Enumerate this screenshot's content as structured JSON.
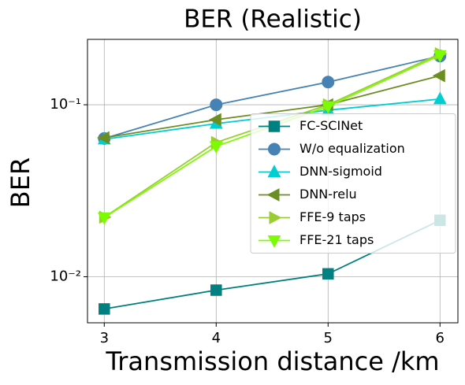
{
  "chart_data": {
    "type": "line",
    "title": "BER (Realistic)",
    "x_label": "Transmission distance /km",
    "y_label": "BER",
    "x": [
      3,
      4,
      5,
      6
    ],
    "xlim": [
      2.85,
      6.16
    ],
    "xticks": [
      3,
      4,
      5,
      6
    ],
    "ylim": [
      0.0054,
      0.24
    ],
    "y_scale": "log",
    "yticks": [
      {
        "value": 0.01,
        "label": "10⁻²"
      },
      {
        "value": 0.1,
        "label": "10⁻¹"
      }
    ],
    "grid": true,
    "legend": "center right",
    "series": [
      {
        "name": "FC-SCINet",
        "color": "#008080",
        "marker": "square",
        "values": [
          0.0065,
          0.00836,
          0.0104,
          0.0213
        ]
      },
      {
        "name": "W/o equalization",
        "color": "#4682b4",
        "marker": "circle",
        "values": [
          0.0637,
          0.1,
          0.1355,
          0.192
        ]
      },
      {
        "name": "DNN-sigmoid",
        "color": "#00ced1",
        "marker": "triangle-up",
        "values": [
          0.063,
          0.0777,
          0.093,
          0.108
        ]
      },
      {
        "name": "DNN-relu",
        "color": "#6b8e23",
        "marker": "triangle-left",
        "values": [
          0.0643,
          0.0819,
          0.1,
          0.1476
        ]
      },
      {
        "name": "FFE-9 taps",
        "color": "#9acd32",
        "marker": "triangle-right",
        "values": [
          0.0222,
          0.0604,
          0.1,
          0.198
        ]
      },
      {
        "name": "FFE-21 taps",
        "color": "#7cfc00",
        "marker": "triangle-down",
        "values": [
          0.0221,
          0.0573,
          0.0979,
          0.194
        ]
      }
    ]
  }
}
